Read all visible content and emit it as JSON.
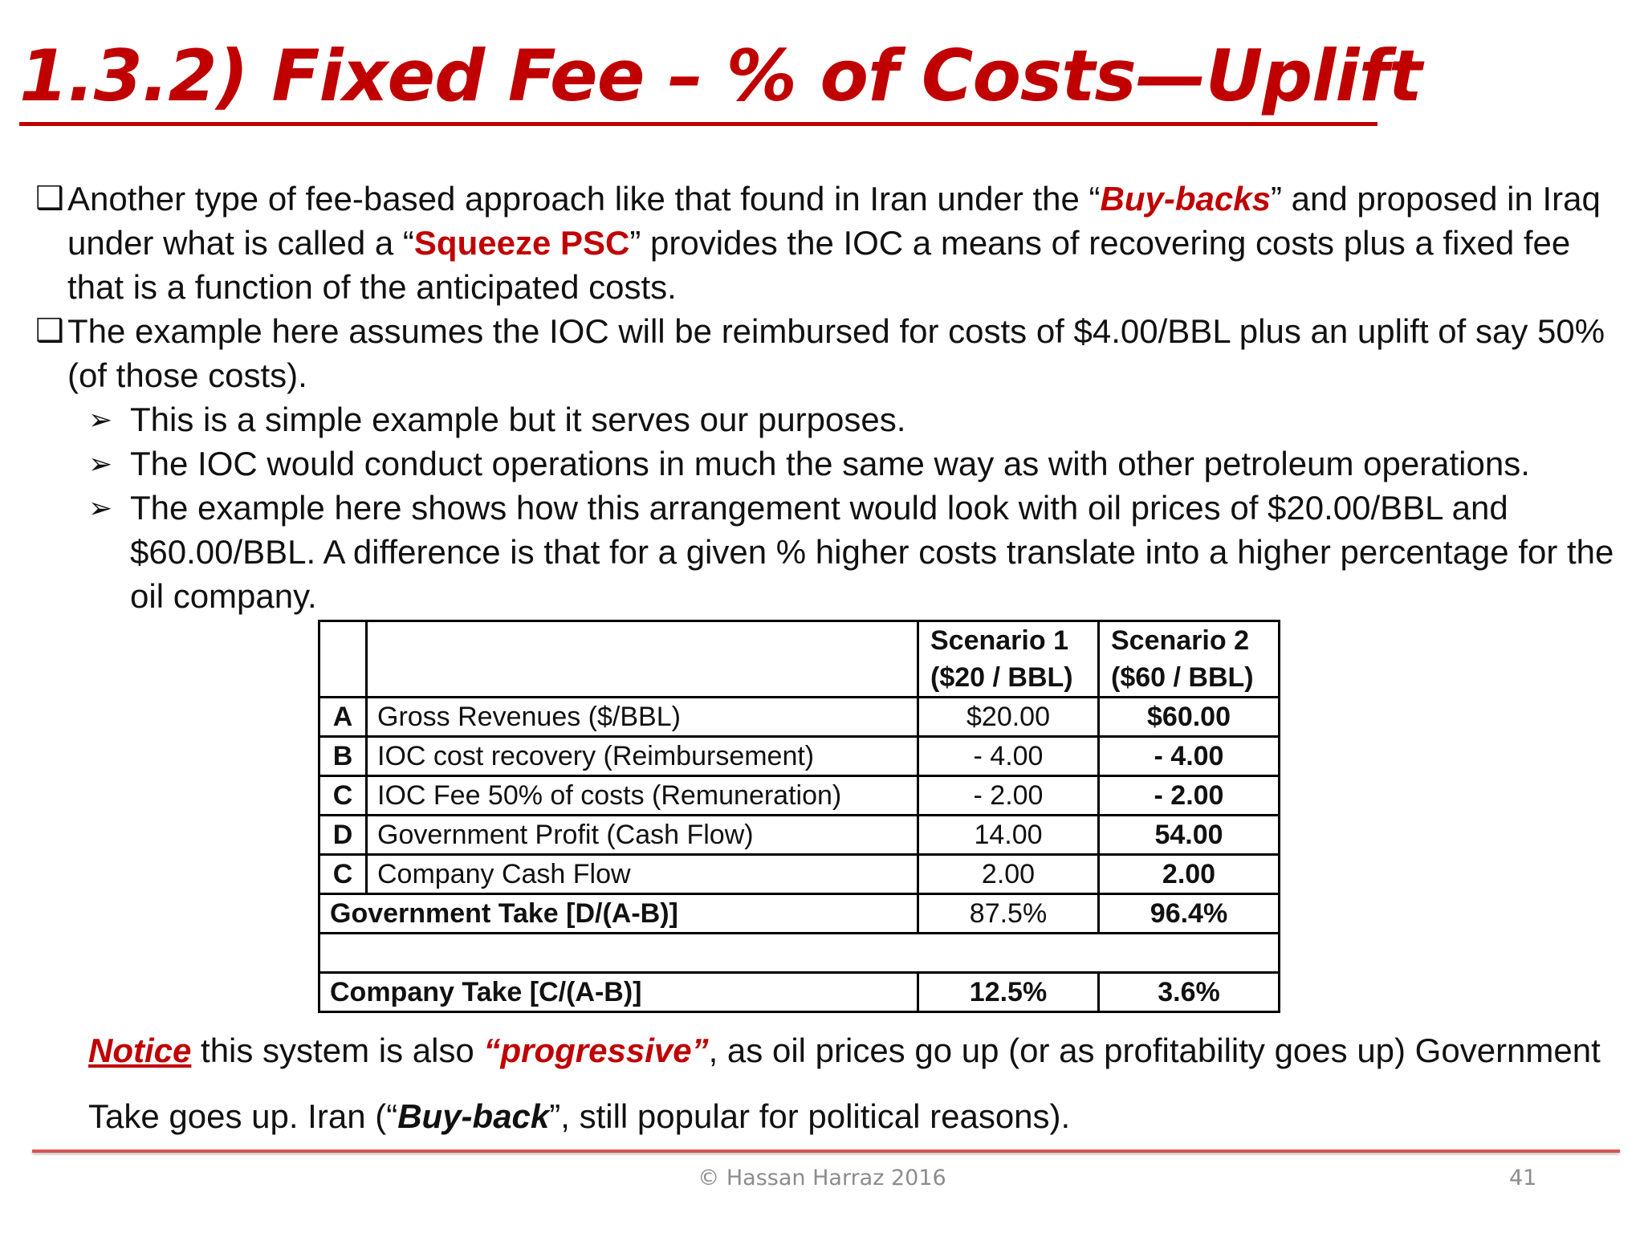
{
  "slide": {
    "title": "1.3.2) Fixed Fee – % of Costs—Uplift"
  },
  "bullets": [
    {
      "marker": "❑",
      "pre": "Another type of fee-based approach like that found in Iran under the “",
      "em1": "Buy-backs",
      "mid": "” and proposed in Iraq under what is called a “",
      "em2": "Squeeze PSC",
      "post": "” provides the IOC a means of recovering costs plus a fixed fee that is a function of the anticipated costs."
    },
    {
      "marker": "❑",
      "text": "The example here assumes the IOC will be reimbursed for costs of $4.00/BBL plus an uplift of say 50% (of those costs)."
    }
  ],
  "subbullets": [
    {
      "marker": "➢",
      "text": "This is a simple example but it serves our purposes."
    },
    {
      "marker": "➢",
      "text": "The IOC would conduct operations in much the same way as with other petroleum operations."
    },
    {
      "marker": "➢",
      "text": "The example here shows how this arrangement would look with oil prices of  $20.00/BBL and $60.00/BBL. A difference is that for a given % higher costs translate into a higher percentage for the oil company."
    }
  ],
  "table": {
    "headers": {
      "s1_line1": "Scenario 1",
      "s1_line2": "($20 / BBL)",
      "s2_line1": "Scenario 2",
      "s2_line2": "($60 / BBL)"
    },
    "rows": [
      {
        "letter": "A",
        "label": "Gross Revenues ($/BBL)",
        "s1": "$20.00",
        "s2": "$60.00"
      },
      {
        "letter": "B",
        "label": "IOC cost recovery (Reimbursement)",
        "s1": "- 4.00",
        "s2": "- 4.00"
      },
      {
        "letter": "C",
        "label": "IOC Fee 50% of costs (Remuneration)",
        "s1": "- 2.00",
        "s2": "- 2.00"
      },
      {
        "letter": "D",
        "label": "Government Profit (Cash Flow)",
        "s1": "14.00",
        "s2": "54.00"
      },
      {
        "letter": "C",
        "label": "Company Cash Flow",
        "s1": "2.00",
        "s2": "2.00"
      }
    ],
    "gov_take": {
      "label": "Government Take [D/(A-B)]",
      "s1": "87.5%",
      "s2": "96.4%"
    },
    "company_take": {
      "label": "Company Take [C/(A-B)]",
      "s1": "12.5%",
      "s2": "3.6%"
    }
  },
  "notice": {
    "lead": "Notice",
    "t1": " this system is also ",
    "progressive": "“progressive”",
    "t2": ", as oil prices go up (or as profitability goes up) Government Take goes up. Iran (“",
    "buyback": "Buy-back",
    "t3": "”, still popular for political reasons)."
  },
  "footer": {
    "copyright": "©  Hassan Harraz  2016",
    "page_number": "41"
  }
}
